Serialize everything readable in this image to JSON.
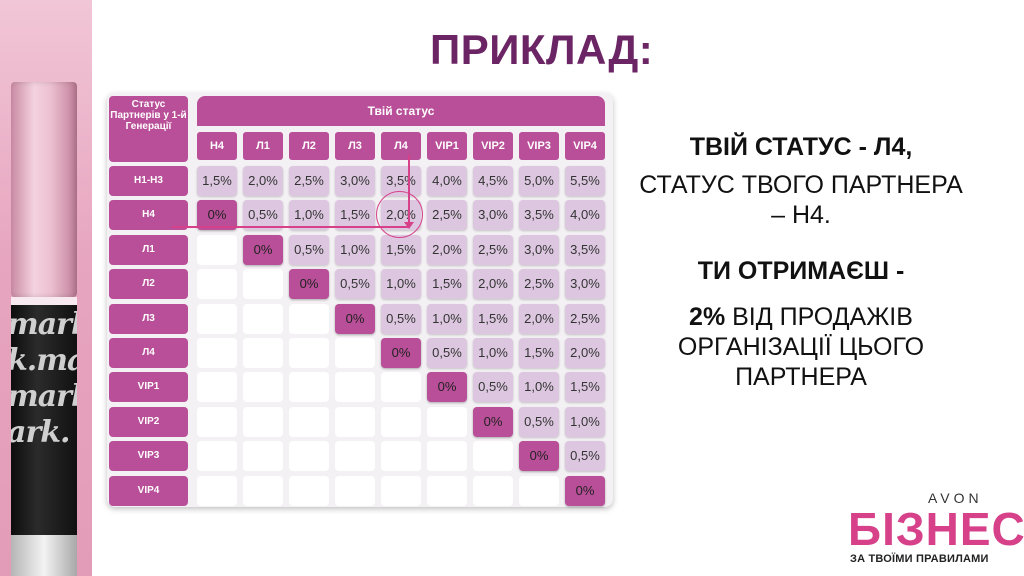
{
  "slide": {
    "title": "ПРИКЛАД:",
    "text": {
      "line1": "ТВІЙ СТАТУС - Л4,",
      "line2": "СТАТУС ТВОГО ПАРТНЕРА – Н4.",
      "line3": "ТИ ОТРИМАЄШ -",
      "line4_bold": "2%",
      "line4_rest": " ВІД ПРОДАЖІВ ОРГАНІЗАЦІЇ ЦЬОГО ПАРТНЕРА"
    }
  },
  "table": {
    "corner_header": "Статус Партнерів у 1-й Генерації",
    "top_header": "Твій статус",
    "columns": [
      "Н4",
      "Л1",
      "Л2",
      "Л3",
      "Л4",
      "VIP1",
      "VIP2",
      "VIP3",
      "VIP4"
    ],
    "rows": [
      {
        "label": "Н1-Н3",
        "cells": [
          "1,5%",
          "2,0%",
          "2,5%",
          "3,0%",
          "3,5%",
          "4,0%",
          "4,5%",
          "5,0%",
          "5,5%"
        ]
      },
      {
        "label": "Н4",
        "cells": [
          "0%",
          "0,5%",
          "1,0%",
          "1,5%",
          "2,0%",
          "2,5%",
          "3,0%",
          "3,5%",
          "4,0%"
        ]
      },
      {
        "label": "Л1",
        "cells": [
          "",
          "0%",
          "0,5%",
          "1,0%",
          "1,5%",
          "2,0%",
          "2,5%",
          "3,0%",
          "3,5%"
        ]
      },
      {
        "label": "Л2",
        "cells": [
          "",
          "",
          "0%",
          "0,5%",
          "1,0%",
          "1,5%",
          "2,0%",
          "2,5%",
          "3,0%"
        ]
      },
      {
        "label": "Л3",
        "cells": [
          "",
          "",
          "",
          "0%",
          "0,5%",
          "1,0%",
          "1,5%",
          "2,0%",
          "2,5%"
        ]
      },
      {
        "label": "Л4",
        "cells": [
          "",
          "",
          "",
          "",
          "0%",
          "0,5%",
          "1,0%",
          "1,5%",
          "2,0%"
        ]
      },
      {
        "label": "VIP1",
        "cells": [
          "",
          "",
          "",
          "",
          "",
          "0%",
          "0,5%",
          "1,0%",
          "1,5%"
        ]
      },
      {
        "label": "VIP2",
        "cells": [
          "",
          "",
          "",
          "",
          "",
          "",
          "0%",
          "0,5%",
          "1,0%"
        ]
      },
      {
        "label": "VIP3",
        "cells": [
          "",
          "",
          "",
          "",
          "",
          "",
          "",
          "0%",
          "0,5%"
        ]
      },
      {
        "label": "VIP4",
        "cells": [
          "",
          "",
          "",
          "",
          "",
          "",
          "",
          "",
          "0%"
        ]
      }
    ]
  },
  "decor": {
    "lipstick_text": [
      "mark.",
      "k.mar",
      "mark.",
      "ark."
    ]
  },
  "logo": {
    "brand": "AVON",
    "name": "БІЗНЕС",
    "tagline": "ЗА ТВОЇМИ ПРАВИЛАМИ"
  },
  "colors": {
    "accent": "#b94f98",
    "title": "#6b2565",
    "cell": "#ddc7e0",
    "highlight": "#d6418a"
  }
}
